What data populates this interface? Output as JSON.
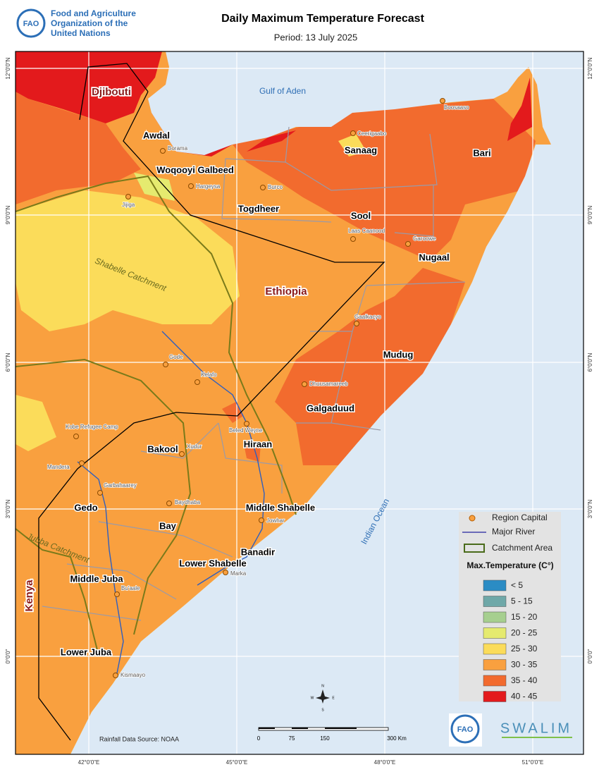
{
  "header": {
    "org": [
      "Food and Agriculture",
      "Organization of the",
      "United Nations"
    ],
    "logo": "FAO",
    "title": "Daily Maximum Temperature Forecast",
    "subtitle": "Period: 13 July 2025"
  },
  "map": {
    "countries": [
      "Djibouti",
      "Ethiopia",
      "Kenya"
    ],
    "water": [
      "Gulf of Aden",
      "Indian Ocean"
    ],
    "regions": [
      "Awdal",
      "Woqooyi Galbeed",
      "Togdheer",
      "Sanaag",
      "Sool",
      "Bari",
      "Nugaal",
      "Mudug",
      "Galgaduud",
      "Hiraan",
      "Bakool",
      "Gedo",
      "Bay",
      "Middle Shabelle",
      "Banadir",
      "Lower Shabelle",
      "Middle Juba",
      "Lower Juba"
    ],
    "cities": [
      "Boosaaso",
      "Ceerigaabo",
      "Borama",
      "Hargeysa",
      "Burco",
      "Jijiga",
      "Laas Caanood",
      "Garoowe",
      "Gaalkacyo",
      "Gode",
      "Kelafo",
      "Dhuusamareeb",
      "Beled Weyne",
      "Kobe Refugee Camp",
      "Mandera",
      "Xudur",
      "Garbahaarey",
      "Baydhaba",
      "Jowhar",
      "Bu'aale",
      "Marka",
      "Kismaayo"
    ],
    "catchments": [
      "Shabelle Catchment",
      "Jubba Catchment"
    ],
    "lat_labels": [
      "12°0'0\"N",
      "9°0'0\"N",
      "6°0'0\"N",
      "3°0'0\"N",
      "0°0'0\""
    ],
    "lon_labels": [
      "42°0'0\"E",
      "45°0'0\"E",
      "48°0'0\"E",
      "51°0'0\"E"
    ],
    "compass": [
      "N",
      "E",
      "S",
      "W"
    ]
  },
  "legend": {
    "symbols": [
      "Region Capital",
      "Major River",
      "Catchment Area"
    ],
    "heading": "Max.Temperature (C°)",
    "classes": [
      {
        "label": "< 5",
        "color": "#2b8cc4"
      },
      {
        "label": "5 - 15",
        "color": "#6fa8a8"
      },
      {
        "label": "15 - 20",
        "color": "#a6cf8f"
      },
      {
        "label": "20 - 25",
        "color": "#e5ea6f"
      },
      {
        "label": "25 - 30",
        "color": "#fbdc5a"
      },
      {
        "label": "30 - 35",
        "color": "#f9a03f"
      },
      {
        "label": "35 - 40",
        "color": "#f26b2e"
      },
      {
        "label": "40 - 45",
        "color": "#e31a1c"
      }
    ]
  },
  "footer": {
    "source": "Rainfall Data Source: NOAA",
    "scale": [
      "0",
      "75",
      "150",
      "300 Km"
    ],
    "partner": "SWALIM"
  }
}
